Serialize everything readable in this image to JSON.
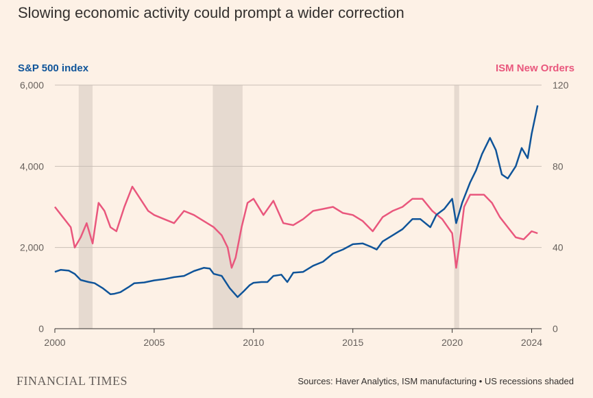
{
  "title": "Slowing economic activity could prompt a wider correction",
  "brand": "FINANCIAL TIMES",
  "source": "Sources: Haver Analytics, ISM manufacturing • US recessions shaded",
  "colors": {
    "sp500": "#0f5499",
    "ism": "#e9577d",
    "recession": "#e6dad0",
    "grid": "#c9bfb6",
    "background": "#fdf1e6"
  },
  "chart_data": {
    "type": "line",
    "title": "Slowing economic activity could prompt a wider correction",
    "x_ticks": [
      "2000",
      "2005",
      "2010",
      "2015",
      "2020",
      "2024"
    ],
    "xlim": [
      2000,
      2024.5
    ],
    "left_axis": {
      "label": "S&P 500 index",
      "ticks": [
        "0",
        "2,000",
        "4,000",
        "6,000"
      ],
      "ylim": [
        0,
        6000
      ]
    },
    "right_axis": {
      "label": "ISM New Orders",
      "ticks": [
        "0",
        "40",
        "80",
        "120"
      ],
      "ylim": [
        0,
        120
      ]
    },
    "recessions": [
      {
        "start": 2001.2,
        "end": 2001.9
      },
      {
        "start": 2007.95,
        "end": 2009.45
      },
      {
        "start": 2020.1,
        "end": 2020.35
      }
    ],
    "series": [
      {
        "name": "S&P 500 index",
        "axis": "left",
        "x": [
          2000,
          2000.3,
          2000.7,
          2001,
          2001.3,
          2001.7,
          2002,
          2002.4,
          2002.8,
          2003,
          2003.3,
          2003.7,
          2004,
          2004.5,
          2005,
          2005.5,
          2006,
          2006.5,
          2007,
          2007.5,
          2007.8,
          2008,
          2008.4,
          2008.8,
          2009.2,
          2009.5,
          2009.8,
          2010,
          2010.4,
          2010.7,
          2011,
          2011.4,
          2011.7,
          2012,
          2012.5,
          2013,
          2013.5,
          2014,
          2014.5,
          2015,
          2015.5,
          2015.9,
          2016.2,
          2016.5,
          2017,
          2017.5,
          2018,
          2018.4,
          2018.9,
          2019.2,
          2019.6,
          2020,
          2020.2,
          2020.5,
          2020.9,
          2021.2,
          2021.5,
          2021.9,
          2022.2,
          2022.5,
          2022.8,
          2023.2,
          2023.5,
          2023.8,
          2024,
          2024.3
        ],
        "values": [
          1400,
          1450,
          1430,
          1350,
          1200,
          1150,
          1120,
          1000,
          850,
          860,
          900,
          1020,
          1120,
          1140,
          1190,
          1220,
          1270,
          1300,
          1420,
          1500,
          1480,
          1350,
          1300,
          1000,
          780,
          920,
          1070,
          1130,
          1150,
          1150,
          1300,
          1330,
          1150,
          1380,
          1400,
          1550,
          1650,
          1850,
          1950,
          2080,
          2100,
          2020,
          1950,
          2150,
          2300,
          2450,
          2700,
          2700,
          2500,
          2800,
          2950,
          3200,
          2600,
          3100,
          3600,
          3900,
          4300,
          4700,
          4400,
          3800,
          3700,
          4000,
          4450,
          4200,
          4800,
          5500
        ]
      },
      {
        "name": "ISM New Orders",
        "axis": "right",
        "x": [
          2000,
          2000.4,
          2000.8,
          2001,
          2001.3,
          2001.6,
          2001.9,
          2002.2,
          2002.5,
          2002.8,
          2003.1,
          2003.5,
          2003.9,
          2004.3,
          2004.7,
          2005,
          2005.5,
          2006,
          2006.5,
          2007,
          2007.5,
          2008,
          2008.4,
          2008.7,
          2008.9,
          2009.1,
          2009.4,
          2009.7,
          2010,
          2010.5,
          2011,
          2011.5,
          2012,
          2012.5,
          2013,
          2013.5,
          2014,
          2014.5,
          2015,
          2015.5,
          2016,
          2016.5,
          2017,
          2017.5,
          2018,
          2018.5,
          2019,
          2019.5,
          2020,
          2020.2,
          2020.35,
          2020.6,
          2020.9,
          2021.2,
          2021.6,
          2022,
          2022.4,
          2022.8,
          2023.2,
          2023.6,
          2024,
          2024.3
        ],
        "values": [
          60,
          55,
          50,
          40,
          45,
          52,
          42,
          62,
          58,
          50,
          48,
          60,
          70,
          64,
          58,
          56,
          54,
          52,
          58,
          56,
          53,
          50,
          46,
          40,
          30,
          35,
          50,
          62,
          64,
          56,
          63,
          52,
          51,
          54,
          58,
          59,
          60,
          57,
          56,
          53,
          48,
          55,
          58,
          60,
          64,
          64,
          58,
          54,
          47,
          30,
          40,
          60,
          66,
          66,
          66,
          62,
          55,
          50,
          45,
          44,
          48,
          47
        ]
      }
    ]
  }
}
